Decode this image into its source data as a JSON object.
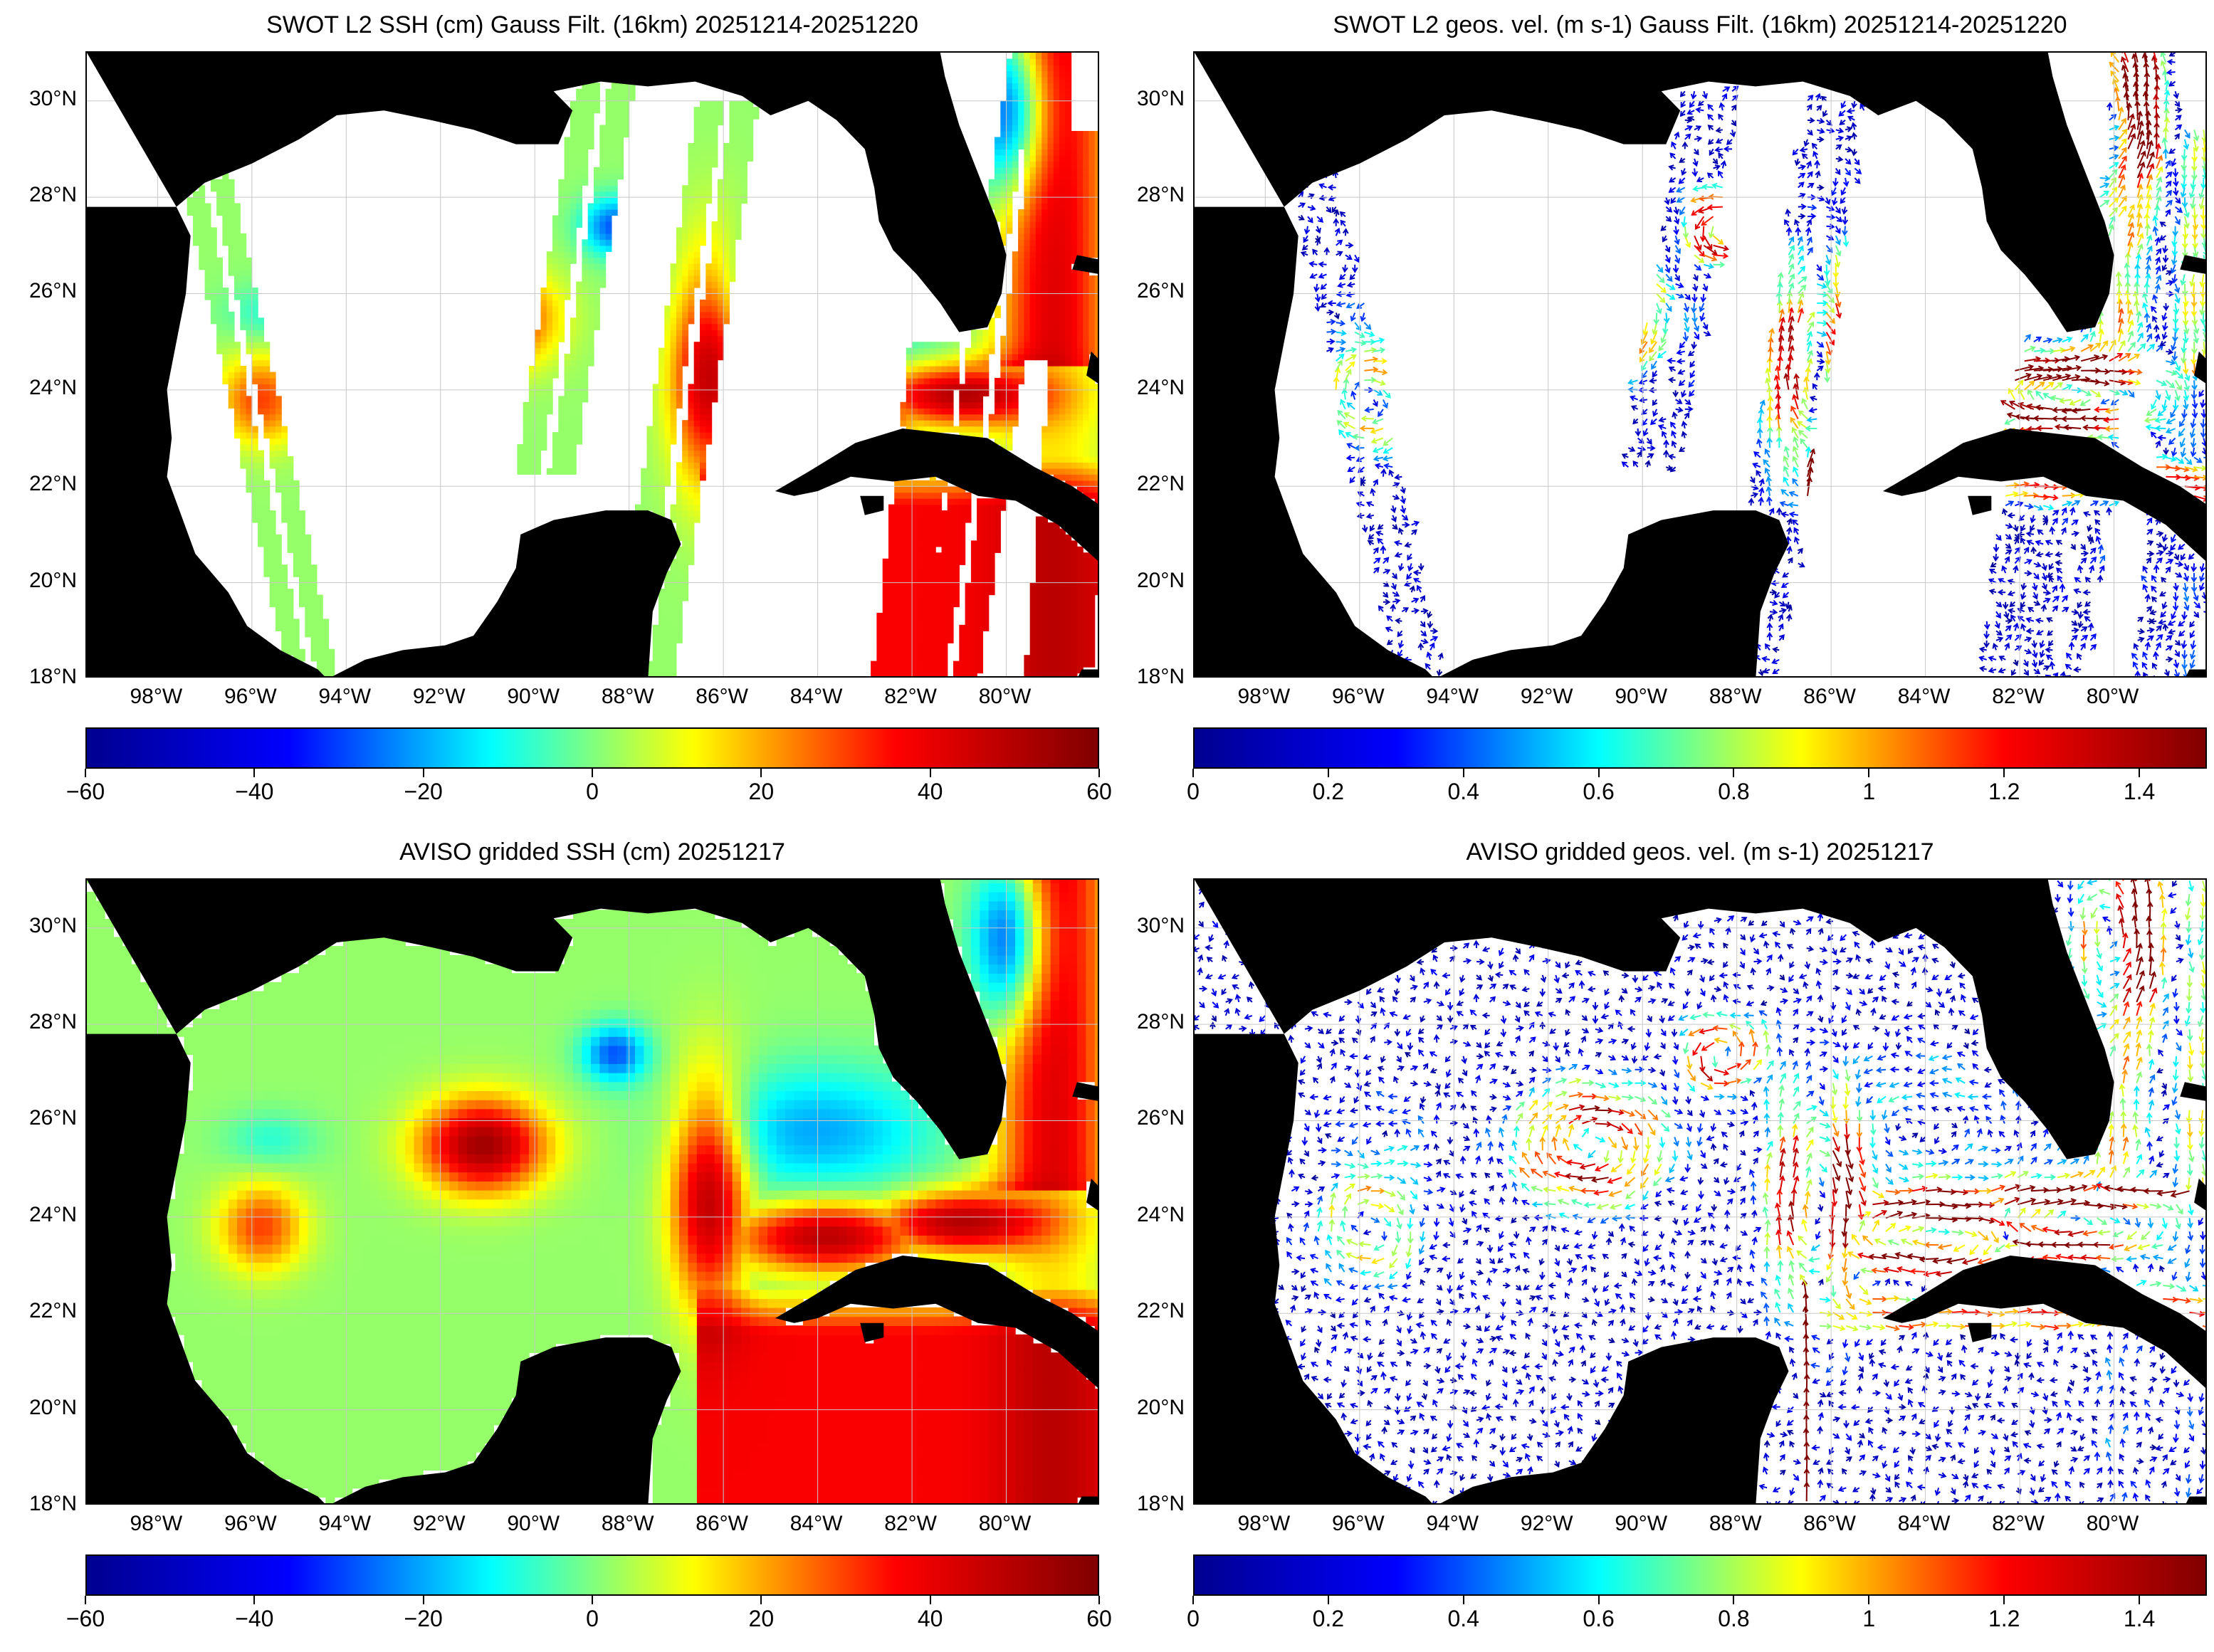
{
  "panels": [
    {
      "id": "swot-ssh",
      "title": "SWOT L2 SSH (cm) Gauss Filt. (16km) 20251214-20251220",
      "kind": "ssh-swaths",
      "colorbar": {
        "min": -60,
        "max": 60,
        "ticks": [
          "-60",
          "-40",
          "-20",
          "0",
          "20",
          "40",
          "60"
        ]
      }
    },
    {
      "id": "swot-vel",
      "title": "SWOT L2 geos. vel. (m s-1) Gauss Filt. (16km) 20251214-20251220",
      "kind": "vel-swaths",
      "colorbar": {
        "min": 0,
        "max": 1.5,
        "ticks": [
          "0",
          "0.2",
          "0.4",
          "0.6",
          "0.8",
          "1",
          "1.2",
          "1.4"
        ]
      }
    },
    {
      "id": "aviso-ssh",
      "title": "AVISO gridded SSH (cm) 20251217",
      "kind": "ssh-full",
      "colorbar": {
        "min": -60,
        "max": 60,
        "ticks": [
          "-60",
          "-40",
          "-20",
          "0",
          "20",
          "40",
          "60"
        ]
      }
    },
    {
      "id": "aviso-vel",
      "title": "AVISO gridded geos. vel. (m s-1)  20251217",
      "kind": "vel-full",
      "colorbar": {
        "min": 0,
        "max": 1.5,
        "ticks": [
          "0",
          "0.2",
          "0.4",
          "0.6",
          "0.8",
          "1",
          "1.2",
          "1.4"
        ]
      }
    }
  ],
  "map_extent": {
    "lon_min": -99.5,
    "lon_max": -78.0,
    "lat_min": 18.0,
    "lat_max": 31.0
  },
  "lat_labels": [
    "30°N",
    "28°N",
    "26°N",
    "24°N",
    "22°N",
    "20°N",
    "18°N"
  ],
  "lat_values": [
    30,
    28,
    26,
    24,
    22,
    20,
    18
  ],
  "lon_labels": [
    "98°W",
    "96°W",
    "94°W",
    "92°W",
    "90°W",
    "88°W",
    "86°W",
    "84°W",
    "82°W",
    "80°W"
  ],
  "lon_values": [
    -98,
    -96,
    -94,
    -92,
    -90,
    -88,
    -86,
    -84,
    -82,
    -80
  ],
  "colormap": [
    "#00008f",
    "#0000ff",
    "#00ffff",
    "#ffff00",
    "#ff0000",
    "#800000"
  ],
  "land_color": "#000000",
  "ocean_blank_color": "#ffffff"
}
